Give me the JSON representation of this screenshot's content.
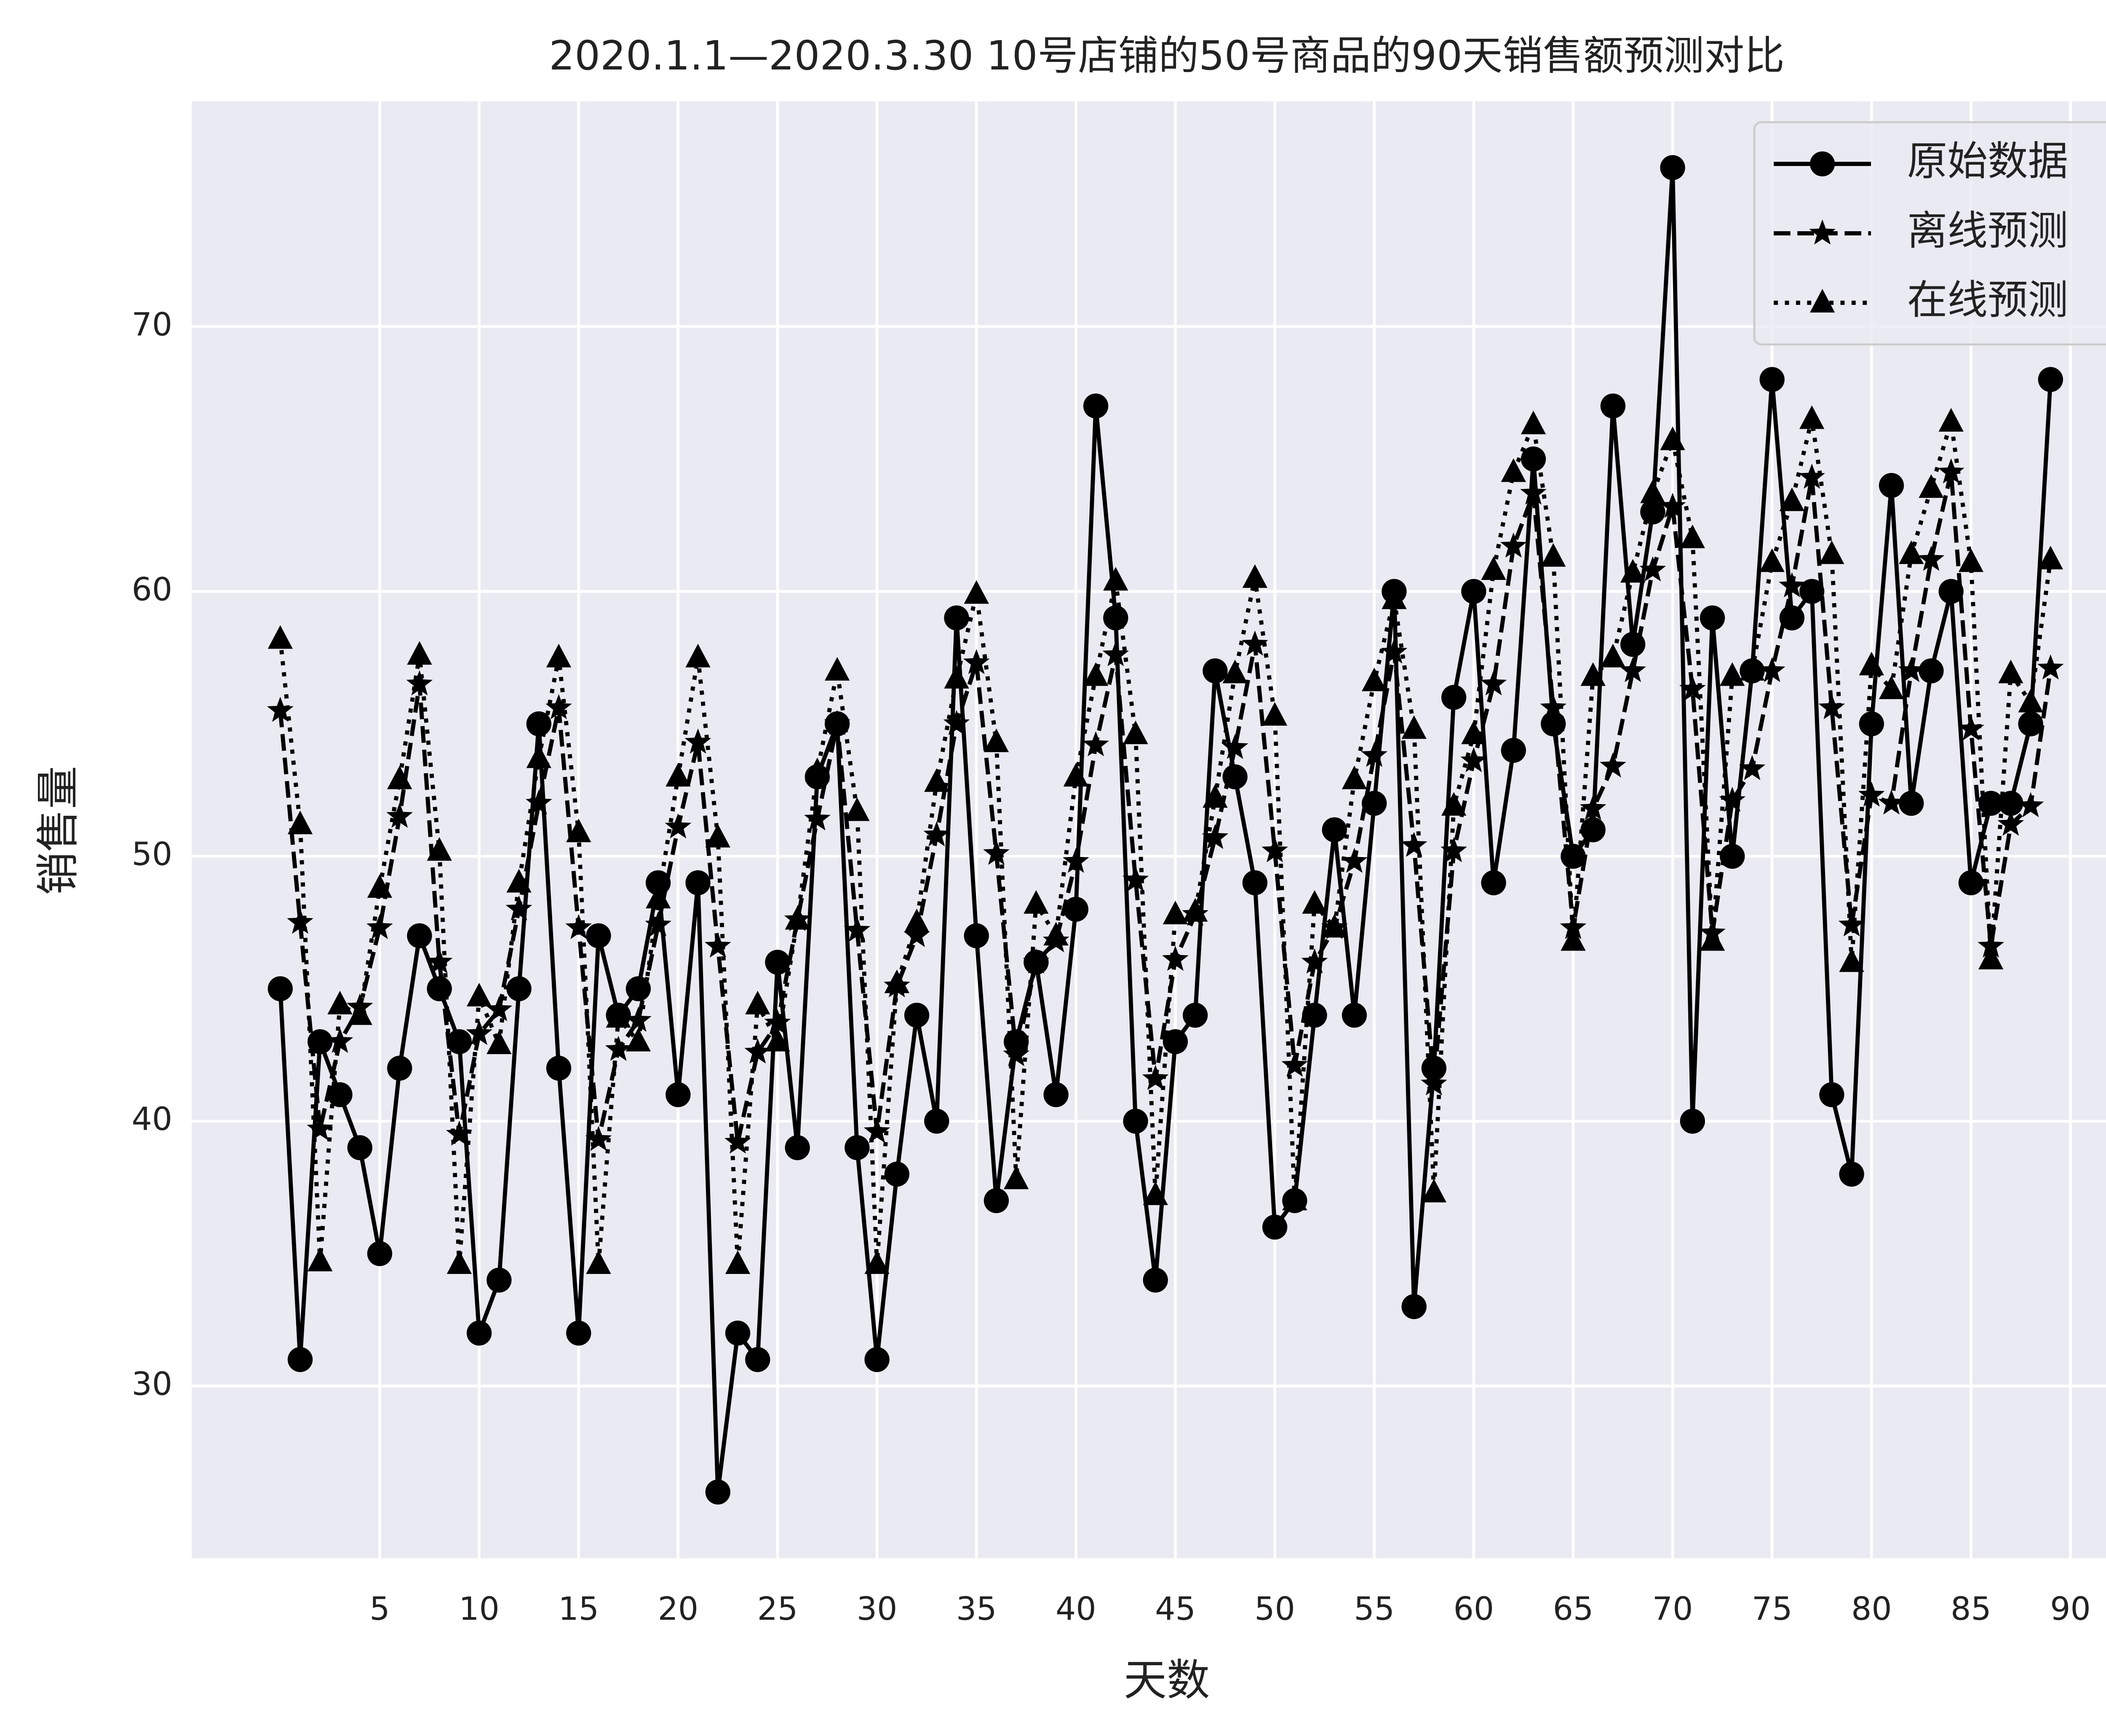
{
  "chart_data": {
    "type": "line",
    "title": "2020.1.1—2020.3.30 10号店铺的50号商品的90天销售额预测对比",
    "x_label": "天数",
    "y_label": "销售量",
    "x": [
      0,
      1,
      2,
      3,
      4,
      5,
      6,
      7,
      8,
      9,
      10,
      11,
      12,
      13,
      14,
      15,
      16,
      17,
      18,
      19,
      20,
      21,
      22,
      23,
      24,
      25,
      26,
      27,
      28,
      29,
      30,
      31,
      32,
      33,
      34,
      35,
      36,
      37,
      38,
      39,
      40,
      41,
      42,
      43,
      44,
      45,
      46,
      47,
      48,
      49,
      50,
      51,
      52,
      53,
      54,
      55,
      56,
      57,
      58,
      59,
      60,
      61,
      62,
      63,
      64,
      65,
      66,
      67,
      68,
      69,
      70,
      71,
      72,
      73,
      74,
      75,
      76,
      77,
      78,
      79,
      80,
      81,
      82,
      83,
      84,
      85,
      86,
      87,
      88,
      89
    ],
    "series": [
      {
        "name": "原始数据",
        "color": "#000000",
        "linestyle": "solid",
        "marker": "o",
        "values": [
          45,
          31,
          43,
          41,
          39,
          35,
          42,
          47,
          45,
          43,
          32,
          34,
          45,
          55,
          42,
          32,
          47,
          44,
          45,
          49,
          41,
          49,
          26,
          32,
          31,
          46,
          39,
          53,
          55,
          39,
          31,
          38,
          44,
          40,
          59,
          47,
          37,
          43,
          46,
          41,
          48,
          67,
          59,
          40,
          34,
          43,
          44,
          57,
          53,
          49,
          36,
          37,
          44,
          51,
          44,
          52,
          60,
          33,
          42,
          56,
          60,
          49,
          54,
          65,
          55,
          50,
          51,
          67,
          58,
          63,
          76,
          40,
          59,
          50,
          57,
          68,
          59,
          60,
          41,
          38,
          55,
          64,
          52,
          57,
          60,
          49,
          52,
          52,
          55,
          68
        ]
      },
      {
        "name": "离线预测",
        "color": "#000000",
        "linestyle": "dashed",
        "marker": "*",
        "values": [
          55.5,
          47.5,
          39.7,
          43,
          44.3,
          47.3,
          51.5,
          56.5,
          46,
          39.5,
          43.3,
          44.2,
          48,
          52,
          55.6,
          47.3,
          39.3,
          42.7,
          43.8,
          47.4,
          51.1,
          54.3,
          46.6,
          39.2,
          42.6,
          43.7,
          47.6,
          51.4,
          55,
          47.2,
          39.6,
          45.1,
          47,
          50.8,
          55,
          57.3,
          50.1,
          42.5,
          46,
          46.8,
          49.8,
          54.2,
          57.6,
          49.1,
          41.6,
          46.1,
          47.8,
          50.7,
          54.1,
          58,
          50.2,
          42.1,
          46,
          47.3,
          49.8,
          53.8,
          57.7,
          50.4,
          41.4,
          50.2,
          53.6,
          56.5,
          61.7,
          63.7,
          55.6,
          47.3,
          51.8,
          53.4,
          57,
          60.8,
          63.2,
          56.3,
          47.1,
          52.1,
          53.3,
          57,
          60.2,
          64.3,
          55.6,
          47.4,
          52.3,
          52,
          57,
          61.2,
          64.5,
          54.8,
          46.6,
          51.2,
          51.9,
          57.1
        ]
      },
      {
        "name": "在线预测",
        "color": "#000000",
        "linestyle": "dotted",
        "marker": "^",
        "values": [
          58.2,
          51.2,
          34.7,
          44.4,
          44,
          48.8,
          52.9,
          57.6,
          50.2,
          34.6,
          44.7,
          42.9,
          49,
          53.7,
          57.5,
          50.9,
          34.6,
          43.9,
          43,
          48.4,
          53,
          57.5,
          50.7,
          34.6,
          44.4,
          43,
          47.6,
          53.2,
          57,
          51.7,
          34.6,
          45.2,
          47.5,
          52.8,
          56.7,
          59.9,
          54.3,
          37.8,
          48.2,
          47,
          53,
          56.8,
          60.4,
          54.6,
          37.2,
          47.8,
          47.9,
          52.2,
          56.9,
          60.5,
          55.3,
          37,
          48.2,
          47.3,
          52.9,
          56.6,
          59.7,
          54.8,
          37.3,
          51.9,
          54.6,
          60.8,
          64.5,
          66.3,
          61.3,
          46.8,
          56.8,
          57.5,
          60.7,
          63.7,
          65.7,
          62,
          46.8,
          56.8,
          57,
          61.1,
          63.4,
          66.5,
          61.4,
          46,
          57.2,
          56.3,
          61.4,
          63.9,
          66.4,
          61.1,
          46.1,
          56.9,
          55.8,
          61.2
        ]
      }
    ],
    "xlim": [
      -4.45,
      93.45
    ],
    "ylim": [
      23.5,
      78.5
    ],
    "xticks": [
      5,
      10,
      15,
      20,
      25,
      30,
      35,
      40,
      45,
      50,
      55,
      60,
      65,
      70,
      75,
      80,
      85,
      90
    ],
    "yticks": [
      30,
      40,
      50,
      60,
      70
    ],
    "grid": true,
    "legend": "upper right"
  }
}
